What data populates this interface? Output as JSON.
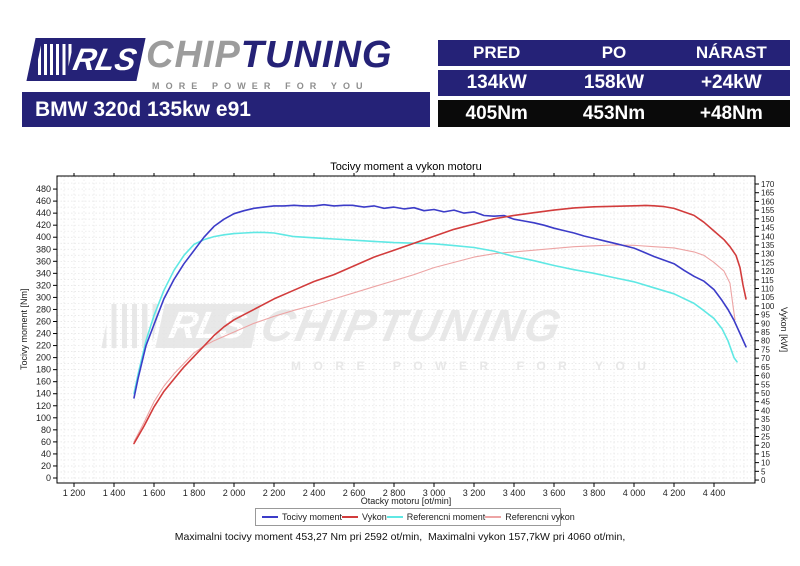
{
  "brand": {
    "rls": "RLS",
    "chip": "CHIP",
    "tuning": "TUNING",
    "tagline": "MORE POWER FOR YOU",
    "navy": "#252277",
    "gray": "#9c9c9c"
  },
  "vehicle_title": "BMW 320d 135kw e91",
  "results_table": {
    "headers": [
      "PRED",
      "PO",
      "NÁRAST"
    ],
    "rows": [
      [
        "134kW",
        "158kW",
        "+24kW"
      ],
      [
        "405Nm",
        "453Nm",
        "+48Nm"
      ]
    ]
  },
  "watermark": {
    "rls": "RLS",
    "chiptuning": "CHIPTUNING",
    "tagline": "MORE POWER FOR YOU"
  },
  "footer_note": "Maximalni tocivy moment 453,27 Nm pri 2592 ot/min,  Maximalni vykon 157,7kW pri 4060 ot/min,",
  "chart_data": {
    "type": "line",
    "title": "Tocivy moment a vykon motoru",
    "xlabel": "Otacky motoru [ot/min]",
    "ylabel_left": "Tocivy moment [Nm]",
    "ylabel_right": "Vykon [kW]",
    "grid": true,
    "legend_position": "bottom",
    "xlim": [
      1115,
      4605
    ],
    "ylim_left": [
      -8.3,
      501.7
    ],
    "ylim_right": [
      -1.7,
      174.6
    ],
    "x_ticks": [
      1200,
      1400,
      1600,
      1800,
      2000,
      2200,
      2400,
      2600,
      2800,
      3000,
      3200,
      3400,
      3600,
      3800,
      4000,
      4200,
      4400
    ],
    "x_tick_labels": [
      "1 200",
      "1 400",
      "1 600",
      "1 800",
      "2 000",
      "2 200",
      "2 400",
      "2 600",
      "2 800",
      "3 000",
      "3 200",
      "3 400",
      "3 600",
      "3 800",
      "4 000",
      "4 200",
      "4 400"
    ],
    "left_ticks": {
      "min": 0,
      "max": 480,
      "step": 20
    },
    "right_ticks": {
      "min": 0,
      "max": 170,
      "step": 5
    },
    "grid_minor": {
      "x_step": 50,
      "y_left_step": 10
    },
    "max_torque": {
      "value_nm": 453.27,
      "rpm": 2592
    },
    "max_power": {
      "value_kw": 157.7,
      "rpm": 4060
    },
    "series": [
      {
        "name": "Referencni vykon",
        "axis": "right",
        "color": "#eda4a4",
        "width": 1.1,
        "points": [
          [
            1500,
            22
          ],
          [
            1550,
            33
          ],
          [
            1600,
            45
          ],
          [
            1650,
            54
          ],
          [
            1700,
            61
          ],
          [
            1750,
            67
          ],
          [
            1800,
            73
          ],
          [
            1850,
            77
          ],
          [
            1900,
            80
          ],
          [
            2000,
            85
          ],
          [
            2100,
            90
          ],
          [
            2200,
            94
          ],
          [
            2300,
            97.5
          ],
          [
            2400,
            100.5
          ],
          [
            2500,
            104
          ],
          [
            2600,
            107.5
          ],
          [
            2700,
            111
          ],
          [
            2800,
            114.5
          ],
          [
            2900,
            118
          ],
          [
            3000,
            122
          ],
          [
            3100,
            125
          ],
          [
            3200,
            128
          ],
          [
            3300,
            130
          ],
          [
            3400,
            131
          ],
          [
            3500,
            132
          ],
          [
            3600,
            133
          ],
          [
            3700,
            134
          ],
          [
            3800,
            134.5
          ],
          [
            3900,
            135
          ],
          [
            4000,
            134.8
          ],
          [
            4100,
            134
          ],
          [
            4200,
            133.3
          ],
          [
            4300,
            131
          ],
          [
            4350,
            129
          ],
          [
            4400,
            125
          ],
          [
            4450,
            120
          ],
          [
            4480,
            113
          ],
          [
            4495,
            100
          ],
          [
            4505,
            92
          ]
        ]
      },
      {
        "name": "Referencni moment",
        "axis": "left",
        "color": "#5fe8e4",
        "width": 1.6,
        "points": [
          [
            1500,
            140
          ],
          [
            1520,
            172
          ],
          [
            1560,
            228
          ],
          [
            1600,
            270
          ],
          [
            1650,
            312
          ],
          [
            1700,
            345
          ],
          [
            1750,
            370
          ],
          [
            1800,
            388
          ],
          [
            1850,
            396
          ],
          [
            1900,
            401
          ],
          [
            1950,
            404
          ],
          [
            2000,
            406
          ],
          [
            2050,
            407
          ],
          [
            2100,
            408
          ],
          [
            2150,
            408
          ],
          [
            2200,
            407
          ],
          [
            2250,
            404
          ],
          [
            2300,
            401
          ],
          [
            2350,
            400
          ],
          [
            2400,
            399
          ],
          [
            2450,
            398
          ],
          [
            2500,
            397
          ],
          [
            2550,
            396
          ],
          [
            2600,
            395
          ],
          [
            2700,
            393
          ],
          [
            2800,
            391
          ],
          [
            2900,
            390
          ],
          [
            3000,
            389
          ],
          [
            3100,
            386
          ],
          [
            3200,
            383
          ],
          [
            3300,
            377
          ],
          [
            3400,
            368
          ],
          [
            3500,
            361
          ],
          [
            3600,
            353
          ],
          [
            3700,
            346
          ],
          [
            3800,
            340
          ],
          [
            3900,
            333
          ],
          [
            4000,
            326
          ],
          [
            4100,
            316
          ],
          [
            4200,
            306
          ],
          [
            4300,
            290
          ],
          [
            4350,
            278
          ],
          [
            4400,
            265
          ],
          [
            4440,
            248
          ],
          [
            4470,
            228
          ],
          [
            4500,
            200
          ],
          [
            4515,
            193
          ]
        ]
      },
      {
        "name": "Tocivy moment",
        "axis": "left",
        "color": "#3c3cc8",
        "width": 1.6,
        "points": [
          [
            1500,
            133
          ],
          [
            1520,
            165
          ],
          [
            1560,
            220
          ],
          [
            1600,
            255
          ],
          [
            1650,
            298
          ],
          [
            1700,
            330
          ],
          [
            1750,
            356
          ],
          [
            1800,
            378
          ],
          [
            1850,
            400
          ],
          [
            1900,
            418
          ],
          [
            1950,
            430
          ],
          [
            2000,
            439
          ],
          [
            2050,
            444
          ],
          [
            2100,
            448
          ],
          [
            2150,
            450
          ],
          [
            2200,
            452
          ],
          [
            2250,
            452
          ],
          [
            2300,
            453
          ],
          [
            2350,
            452
          ],
          [
            2400,
            452
          ],
          [
            2450,
            454
          ],
          [
            2500,
            452
          ],
          [
            2550,
            453
          ],
          [
            2592,
            453
          ],
          [
            2650,
            450
          ],
          [
            2700,
            452
          ],
          [
            2750,
            448
          ],
          [
            2800,
            450
          ],
          [
            2850,
            447
          ],
          [
            2900,
            449
          ],
          [
            2950,
            444
          ],
          [
            3000,
            446
          ],
          [
            3050,
            442
          ],
          [
            3100,
            445
          ],
          [
            3150,
            440
          ],
          [
            3200,
            442
          ],
          [
            3250,
            436
          ],
          [
            3300,
            435
          ],
          [
            3350,
            436
          ],
          [
            3400,
            430
          ],
          [
            3450,
            427
          ],
          [
            3500,
            424
          ],
          [
            3550,
            420
          ],
          [
            3600,
            415
          ],
          [
            3650,
            411
          ],
          [
            3700,
            407
          ],
          [
            3750,
            402
          ],
          [
            3800,
            398
          ],
          [
            3850,
            394
          ],
          [
            3900,
            390
          ],
          [
            3950,
            386
          ],
          [
            4000,
            382
          ],
          [
            4050,
            375
          ],
          [
            4100,
            368
          ],
          [
            4150,
            362
          ],
          [
            4200,
            356
          ],
          [
            4250,
            345
          ],
          [
            4300,
            335
          ],
          [
            4350,
            327
          ],
          [
            4400,
            313
          ],
          [
            4440,
            295
          ],
          [
            4470,
            280
          ],
          [
            4500,
            262
          ],
          [
            4530,
            240
          ],
          [
            4560,
            218
          ]
        ]
      },
      {
        "name": "Vykon",
        "axis": "right",
        "color": "#d23c3c",
        "width": 1.6,
        "points": [
          [
            1500,
            21
          ],
          [
            1550,
            31
          ],
          [
            1600,
            42
          ],
          [
            1650,
            51
          ],
          [
            1700,
            58
          ],
          [
            1750,
            65
          ],
          [
            1800,
            71
          ],
          [
            1850,
            77
          ],
          [
            1900,
            83
          ],
          [
            1950,
            88
          ],
          [
            2000,
            92
          ],
          [
            2100,
            98
          ],
          [
            2200,
            104
          ],
          [
            2300,
            109
          ],
          [
            2400,
            114
          ],
          [
            2500,
            118
          ],
          [
            2600,
            123
          ],
          [
            2700,
            128
          ],
          [
            2800,
            132
          ],
          [
            2900,
            136
          ],
          [
            3000,
            140
          ],
          [
            3100,
            144
          ],
          [
            3200,
            147
          ],
          [
            3300,
            150
          ],
          [
            3400,
            152
          ],
          [
            3500,
            153.5
          ],
          [
            3600,
            155
          ],
          [
            3700,
            156.3
          ],
          [
            3800,
            156.9
          ],
          [
            3900,
            157.2
          ],
          [
            4000,
            157.5
          ],
          [
            4060,
            157.7
          ],
          [
            4100,
            157.5
          ],
          [
            4150,
            157
          ],
          [
            4200,
            156
          ],
          [
            4250,
            154
          ],
          [
            4300,
            152
          ],
          [
            4350,
            148
          ],
          [
            4400,
            143
          ],
          [
            4450,
            138
          ],
          [
            4480,
            134
          ],
          [
            4510,
            129
          ],
          [
            4530,
            122
          ],
          [
            4545,
            112
          ],
          [
            4560,
            104
          ]
        ]
      }
    ],
    "legend_order": [
      "Tocivy moment",
      "Vykon",
      "Referencni moment",
      "Referencni vykon"
    ]
  }
}
